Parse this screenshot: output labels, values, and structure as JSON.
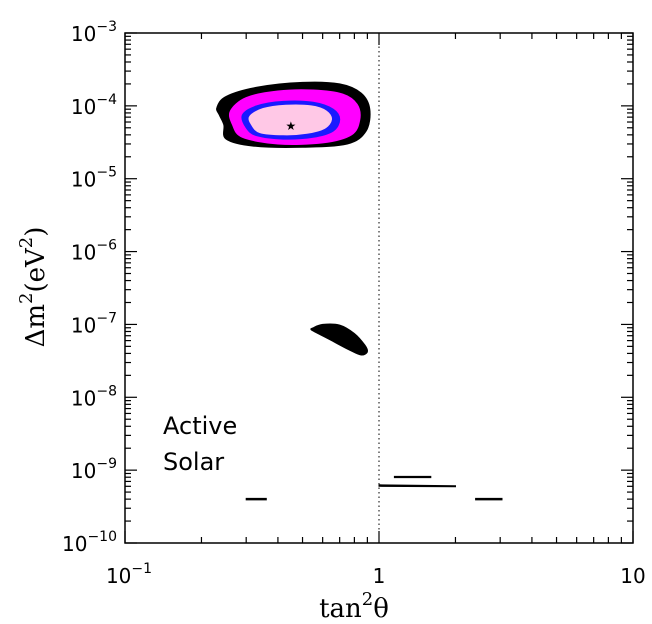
{
  "chart_data": {
    "type": "scatter",
    "title": "",
    "xlabel": {
      "base": "tan",
      "sup": "2",
      "tail": "θ"
    },
    "ylabel": {
      "pre": "Δm",
      "sup1": "2",
      "mid": "(eV",
      "sup2": "2",
      "post": ")"
    },
    "xscale": "log",
    "yscale": "log",
    "xlim": [
      0.1,
      10
    ],
    "ylim": [
      1e-10,
      0.001
    ],
    "x_ticks": [
      {
        "value": 0.1,
        "base": "10",
        "exp": "−1"
      },
      {
        "value": 1,
        "base": "1",
        "exp": ""
      },
      {
        "value": 10,
        "base": "10",
        "exp": ""
      }
    ],
    "y_ticks": [
      {
        "value": 0.001,
        "base": "10",
        "exp": "−3"
      },
      {
        "value": 0.0001,
        "base": "10",
        "exp": "−4"
      },
      {
        "value": 1e-05,
        "base": "10",
        "exp": "−5"
      },
      {
        "value": 1e-06,
        "base": "10",
        "exp": "−6"
      },
      {
        "value": 1e-07,
        "base": "10",
        "exp": "−7"
      },
      {
        "value": 1e-08,
        "base": "10",
        "exp": "−8"
      },
      {
        "value": 1e-09,
        "base": "10",
        "exp": "−9"
      },
      {
        "value": 1e-10,
        "base": "10",
        "exp": "−10"
      }
    ],
    "reference_line": {
      "x": 1,
      "style": "dotted"
    },
    "annotation": [
      "Active",
      "Solar"
    ],
    "colors": {
      "outer": "#000000",
      "magenta": "#ff00ff",
      "blue": "#1a1aff",
      "pink": "#ffc8e6"
    },
    "regions": [
      {
        "color_key": "outer",
        "points": [
          [
            0.23,
            9.5e-05
          ],
          [
            0.25,
            0.000135
          ],
          [
            0.33,
            0.00018
          ],
          [
            0.5,
            0.00021
          ],
          [
            0.7,
            0.0002
          ],
          [
            0.85,
            0.00015
          ],
          [
            0.92,
            9e-05
          ],
          [
            0.89,
            4.5e-05
          ],
          [
            0.75,
            3e-05
          ],
          [
            0.5,
            2.7e-05
          ],
          [
            0.32,
            2.8e-05
          ],
          [
            0.25,
            3.5e-05
          ],
          [
            0.245,
            5.5e-05
          ],
          [
            0.235,
            7.5e-05
          ]
        ]
      },
      {
        "color_key": "magenta",
        "points": [
          [
            0.26,
            8.5e-05
          ],
          [
            0.3,
            0.00013
          ],
          [
            0.4,
            0.00016
          ],
          [
            0.55,
            0.000165
          ],
          [
            0.72,
            0.000145
          ],
          [
            0.82,
            0.000105
          ],
          [
            0.84,
            6.5e-05
          ],
          [
            0.78,
            4e-05
          ],
          [
            0.6,
            3.1e-05
          ],
          [
            0.4,
            3e-05
          ],
          [
            0.29,
            3.7e-05
          ],
          [
            0.265,
            5.5e-05
          ]
        ]
      },
      {
        "color_key": "blue",
        "points": [
          [
            0.29,
            7.5e-05
          ],
          [
            0.33,
            0.0001
          ],
          [
            0.42,
            0.000115
          ],
          [
            0.55,
            0.000112
          ],
          [
            0.66,
            9e-05
          ],
          [
            0.7,
            6.5e-05
          ],
          [
            0.66,
            4.5e-05
          ],
          [
            0.55,
            3.7e-05
          ],
          [
            0.42,
            3.5e-05
          ],
          [
            0.33,
            3.9e-05
          ],
          [
            0.3,
            5e-05
          ]
        ]
      },
      {
        "color_key": "pink",
        "points": [
          [
            0.31,
            7.2e-05
          ],
          [
            0.35,
            9.2e-05
          ],
          [
            0.43,
            0.000102
          ],
          [
            0.54,
            0.0001
          ],
          [
            0.62,
            8.5e-05
          ],
          [
            0.65,
            6.5e-05
          ],
          [
            0.61,
            4.9e-05
          ],
          [
            0.52,
            4.2e-05
          ],
          [
            0.42,
            4e-05
          ],
          [
            0.34,
            4.3e-05
          ],
          [
            0.315,
            5.5e-05
          ]
        ]
      },
      {
        "color_key": "outer",
        "points": [
          [
            0.55,
            9e-08
          ],
          [
            0.6,
            1e-07
          ],
          [
            0.7,
            9.8e-08
          ],
          [
            0.8,
            7.5e-08
          ],
          [
            0.88,
            5.2e-08
          ],
          [
            0.9,
            4.2e-08
          ],
          [
            0.85,
            3.8e-08
          ],
          [
            0.76,
            4.5e-08
          ],
          [
            0.65,
            6e-08
          ],
          [
            0.57,
            7.6e-08
          ],
          [
            0.54,
            8.5e-08
          ]
        ]
      },
      {
        "color_key": "outer",
        "points": [
          [
            0.3,
            4.1e-10
          ],
          [
            0.36,
            4.1e-10
          ],
          [
            0.36,
            3.9e-10
          ],
          [
            0.3,
            3.9e-10
          ]
        ]
      },
      {
        "color_key": "outer",
        "points": [
          [
            1.0,
            6.3e-10
          ],
          [
            2.0,
            6.1e-10
          ],
          [
            2.0,
            5.9e-10
          ],
          [
            1.0,
            6e-10
          ]
        ]
      },
      {
        "color_key": "outer",
        "points": [
          [
            1.15,
            8.2e-10
          ],
          [
            1.6,
            8.2e-10
          ],
          [
            1.6,
            7.9e-10
          ],
          [
            1.15,
            7.9e-10
          ]
        ]
      },
      {
        "color_key": "outer",
        "points": [
          [
            2.4,
            4.1e-10
          ],
          [
            3.05,
            4.1e-10
          ],
          [
            3.05,
            3.9e-10
          ],
          [
            2.4,
            3.9e-10
          ]
        ]
      }
    ],
    "best_fit": {
      "x": 0.45,
      "y": 5.3e-05,
      "marker": "★"
    },
    "grid": false,
    "legend": "none"
  }
}
